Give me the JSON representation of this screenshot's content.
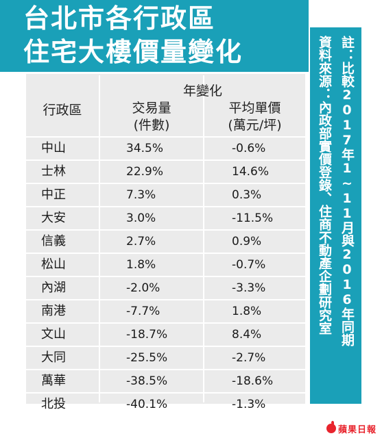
{
  "title": {
    "line1": "台北市各行政區",
    "line2": "住宅大樓價量變化"
  },
  "note": {
    "line1": "註：比較2017年1~11月與2016年同期",
    "line2": "資料來源：內政部實價登錄、住商不動產企劃研究室"
  },
  "logo": {
    "text": "蘋果日報",
    "icon": "apple-icon"
  },
  "colors": {
    "accent": "#1aa0b8",
    "table_bg": "#ebebeb",
    "logo": "#e8242d"
  },
  "chart_data": {
    "type": "table",
    "headers": {
      "district": "行政區",
      "group": "年變化",
      "volume_line1": "交易量",
      "volume_line2": "(件數)",
      "price_line1": "平均單價",
      "price_line2": "(萬元/坪)"
    },
    "rows": [
      {
        "district": "中山",
        "volume": "34.5%",
        "price": "-0.6%"
      },
      {
        "district": "士林",
        "volume": "22.9%",
        "price": "14.6%"
      },
      {
        "district": "中正",
        "volume": "7.3%",
        "price": "0.3%"
      },
      {
        "district": "大安",
        "volume": "3.0%",
        "price": "-11.5%"
      },
      {
        "district": "信義",
        "volume": "2.7%",
        "price": "0.9%"
      },
      {
        "district": "松山",
        "volume": "1.8%",
        "price": "-0.7%"
      },
      {
        "district": "內湖",
        "volume": "-2.0%",
        "price": "-3.3%"
      },
      {
        "district": "南港",
        "volume": "-7.7%",
        "price": "1.8%"
      },
      {
        "district": "文山",
        "volume": "-18.7%",
        "price": "8.4%"
      },
      {
        "district": "大同",
        "volume": "-25.5%",
        "price": "-2.7%"
      },
      {
        "district": "萬華",
        "volume": "-38.5%",
        "price": "-18.6%"
      },
      {
        "district": "北投",
        "volume": "-40.1%",
        "price": "-1.3%"
      }
    ]
  }
}
